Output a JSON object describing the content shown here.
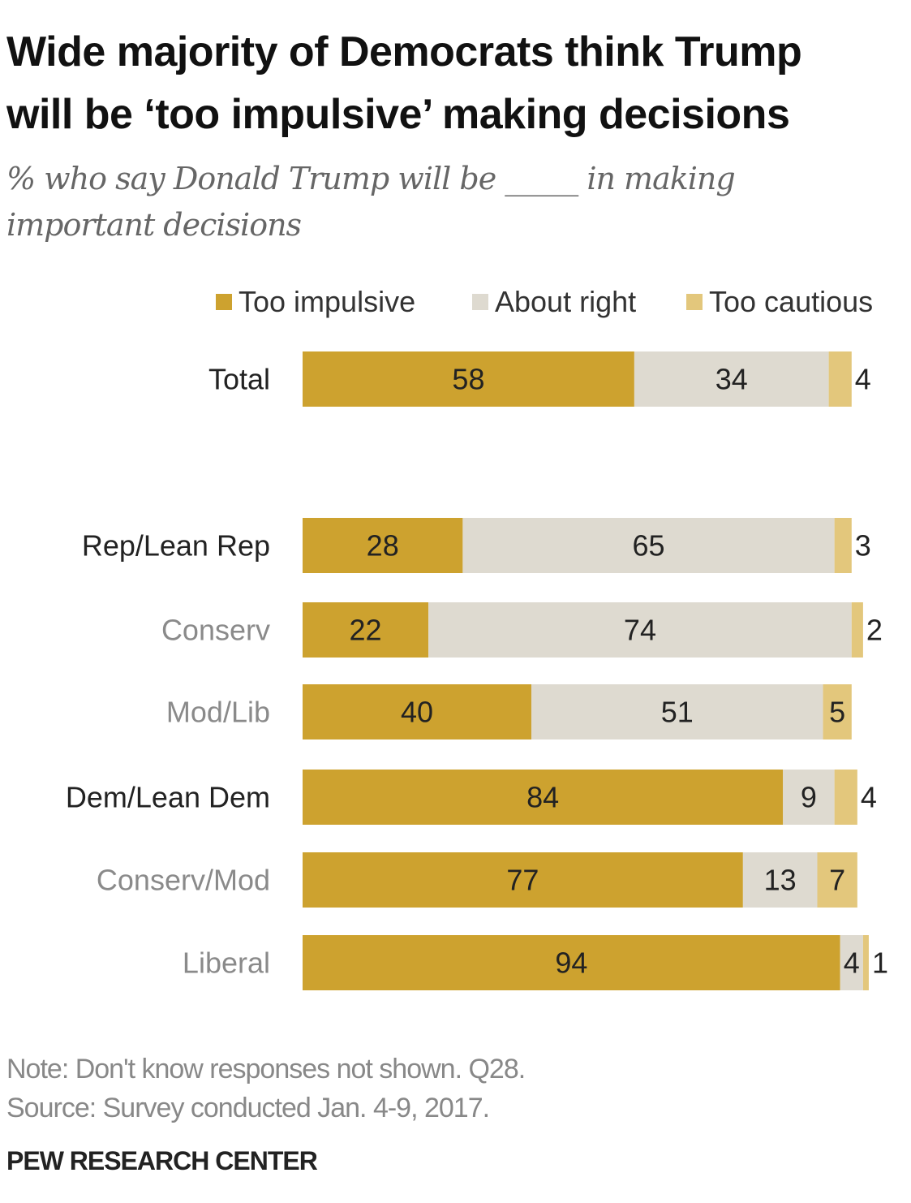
{
  "header": {
    "title_line1": "Wide majority of Democrats think Trump",
    "title_line2": "will be ‘too impulsive’ making decisions",
    "subtitle_line1": "% who say Donald Trump will be _____ in making",
    "subtitle_line2": "important decisions"
  },
  "legend": {
    "items": [
      {
        "label": "Too impulsive",
        "color": "#cda22f"
      },
      {
        "label": "About right",
        "color": "#dedad0"
      },
      {
        "label": "Too cautious",
        "color": "#e3c77c"
      }
    ]
  },
  "chart_data": {
    "type": "bar",
    "orientation": "horizontal",
    "stacked": true,
    "xlim": [
      0,
      100
    ],
    "categories": [
      "Total",
      "Rep/Lean Rep",
      "Conserv",
      "Mod/Lib",
      "Dem/Lean Dem",
      "Conserv/Mod",
      "Liberal"
    ],
    "category_styles": [
      "main",
      "main",
      "sub",
      "sub",
      "main",
      "sub",
      "sub"
    ],
    "series": [
      {
        "name": "Too impulsive",
        "color": "#cda22f",
        "values": [
          58,
          28,
          22,
          40,
          84,
          77,
          94
        ]
      },
      {
        "name": "About right",
        "color": "#dedad0",
        "values": [
          34,
          65,
          74,
          51,
          9,
          13,
          4
        ]
      },
      {
        "name": "Too cautious",
        "color": "#e3c77c",
        "values": [
          4,
          3,
          2,
          5,
          4,
          7,
          1
        ]
      }
    ],
    "label_colors": {
      "main": "#222222",
      "sub": "#8a8a8a"
    }
  },
  "notes": {
    "note": "Note: Don't know responses not shown. Q28.",
    "source": "Source: Survey conducted Jan. 4-9, 2017."
  },
  "footer": {
    "org": "PEW RESEARCH CENTER"
  }
}
